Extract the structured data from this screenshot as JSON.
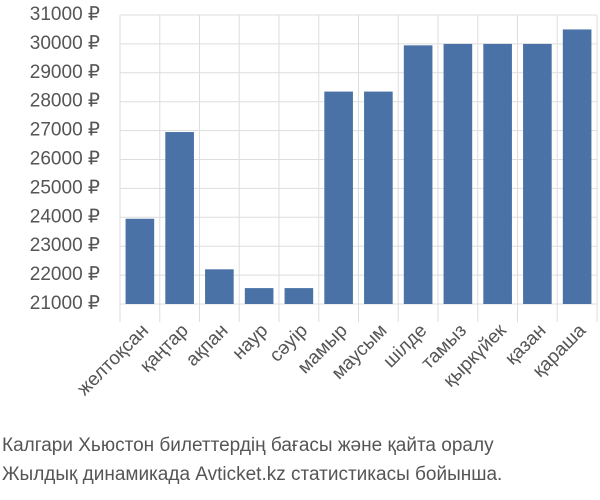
{
  "chart_data": {
    "type": "bar",
    "categories": [
      "желтоқсан",
      "қаңтар",
      "ақпан",
      "наур",
      "сәуір",
      "мамыр",
      "маусым",
      "шілде",
      "тамыз",
      "қыркүйек",
      "қазан",
      "қараша"
    ],
    "values": [
      23950,
      26950,
      22200,
      21550,
      21550,
      28350,
      28350,
      29950,
      30000,
      30000,
      30000,
      30500
    ],
    "color": "#4a72a6",
    "ylim": [
      21000,
      31000
    ],
    "yticks": [
      {
        "value": 21000,
        "label": "21000 ₽"
      },
      {
        "value": 22000,
        "label": "22000 ₽"
      },
      {
        "value": 23000,
        "label": "23000 ₽"
      },
      {
        "value": 24000,
        "label": "24000 ₽"
      },
      {
        "value": 25000,
        "label": "25000 ₽"
      },
      {
        "value": 26000,
        "label": "26000 ₽"
      },
      {
        "value": 27000,
        "label": "27000 ₽"
      },
      {
        "value": 28000,
        "label": "28000 ₽"
      },
      {
        "value": 29000,
        "label": "29000 ₽"
      },
      {
        "value": 30000,
        "label": "30000 ₽"
      },
      {
        "value": 31000,
        "label": "31000 ₽"
      }
    ],
    "grid": true,
    "caption": [
      "Калгари Хьюстон билеттердің бағасы және қайта оралу",
      "Жылдық динамикада Avticket.kz статистикасы бойынша."
    ]
  }
}
